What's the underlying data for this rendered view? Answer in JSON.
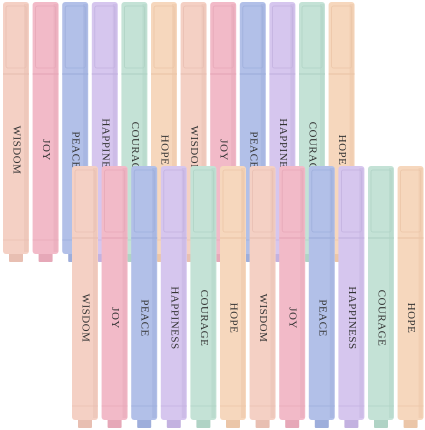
{
  "rows": [
    {
      "pens": [
        {
          "label": "WISDOM"
        },
        {
          "label": "JOY"
        },
        {
          "label": "PEACE"
        },
        {
          "label": "HAPPINESS"
        },
        {
          "label": "COURAGE"
        },
        {
          "label": "HOPE"
        },
        {
          "label": "WISDOM"
        },
        {
          "label": "JOY"
        },
        {
          "label": "PEACE"
        },
        {
          "label": "HAPPINESS"
        },
        {
          "label": "COURAGE"
        },
        {
          "label": "HOPE"
        }
      ]
    },
    {
      "pens": [
        {
          "label": "WISDOM"
        },
        {
          "label": "JOY"
        },
        {
          "label": "PEACE"
        },
        {
          "label": "HAPPINESS"
        },
        {
          "label": "COURAGE"
        },
        {
          "label": "HOPE"
        },
        {
          "label": "WISDOM"
        },
        {
          "label": "JOY"
        },
        {
          "label": "PEACE"
        },
        {
          "label": "HAPPINESS"
        },
        {
          "label": "COURAGE"
        },
        {
          "label": "HOPE"
        }
      ]
    }
  ]
}
